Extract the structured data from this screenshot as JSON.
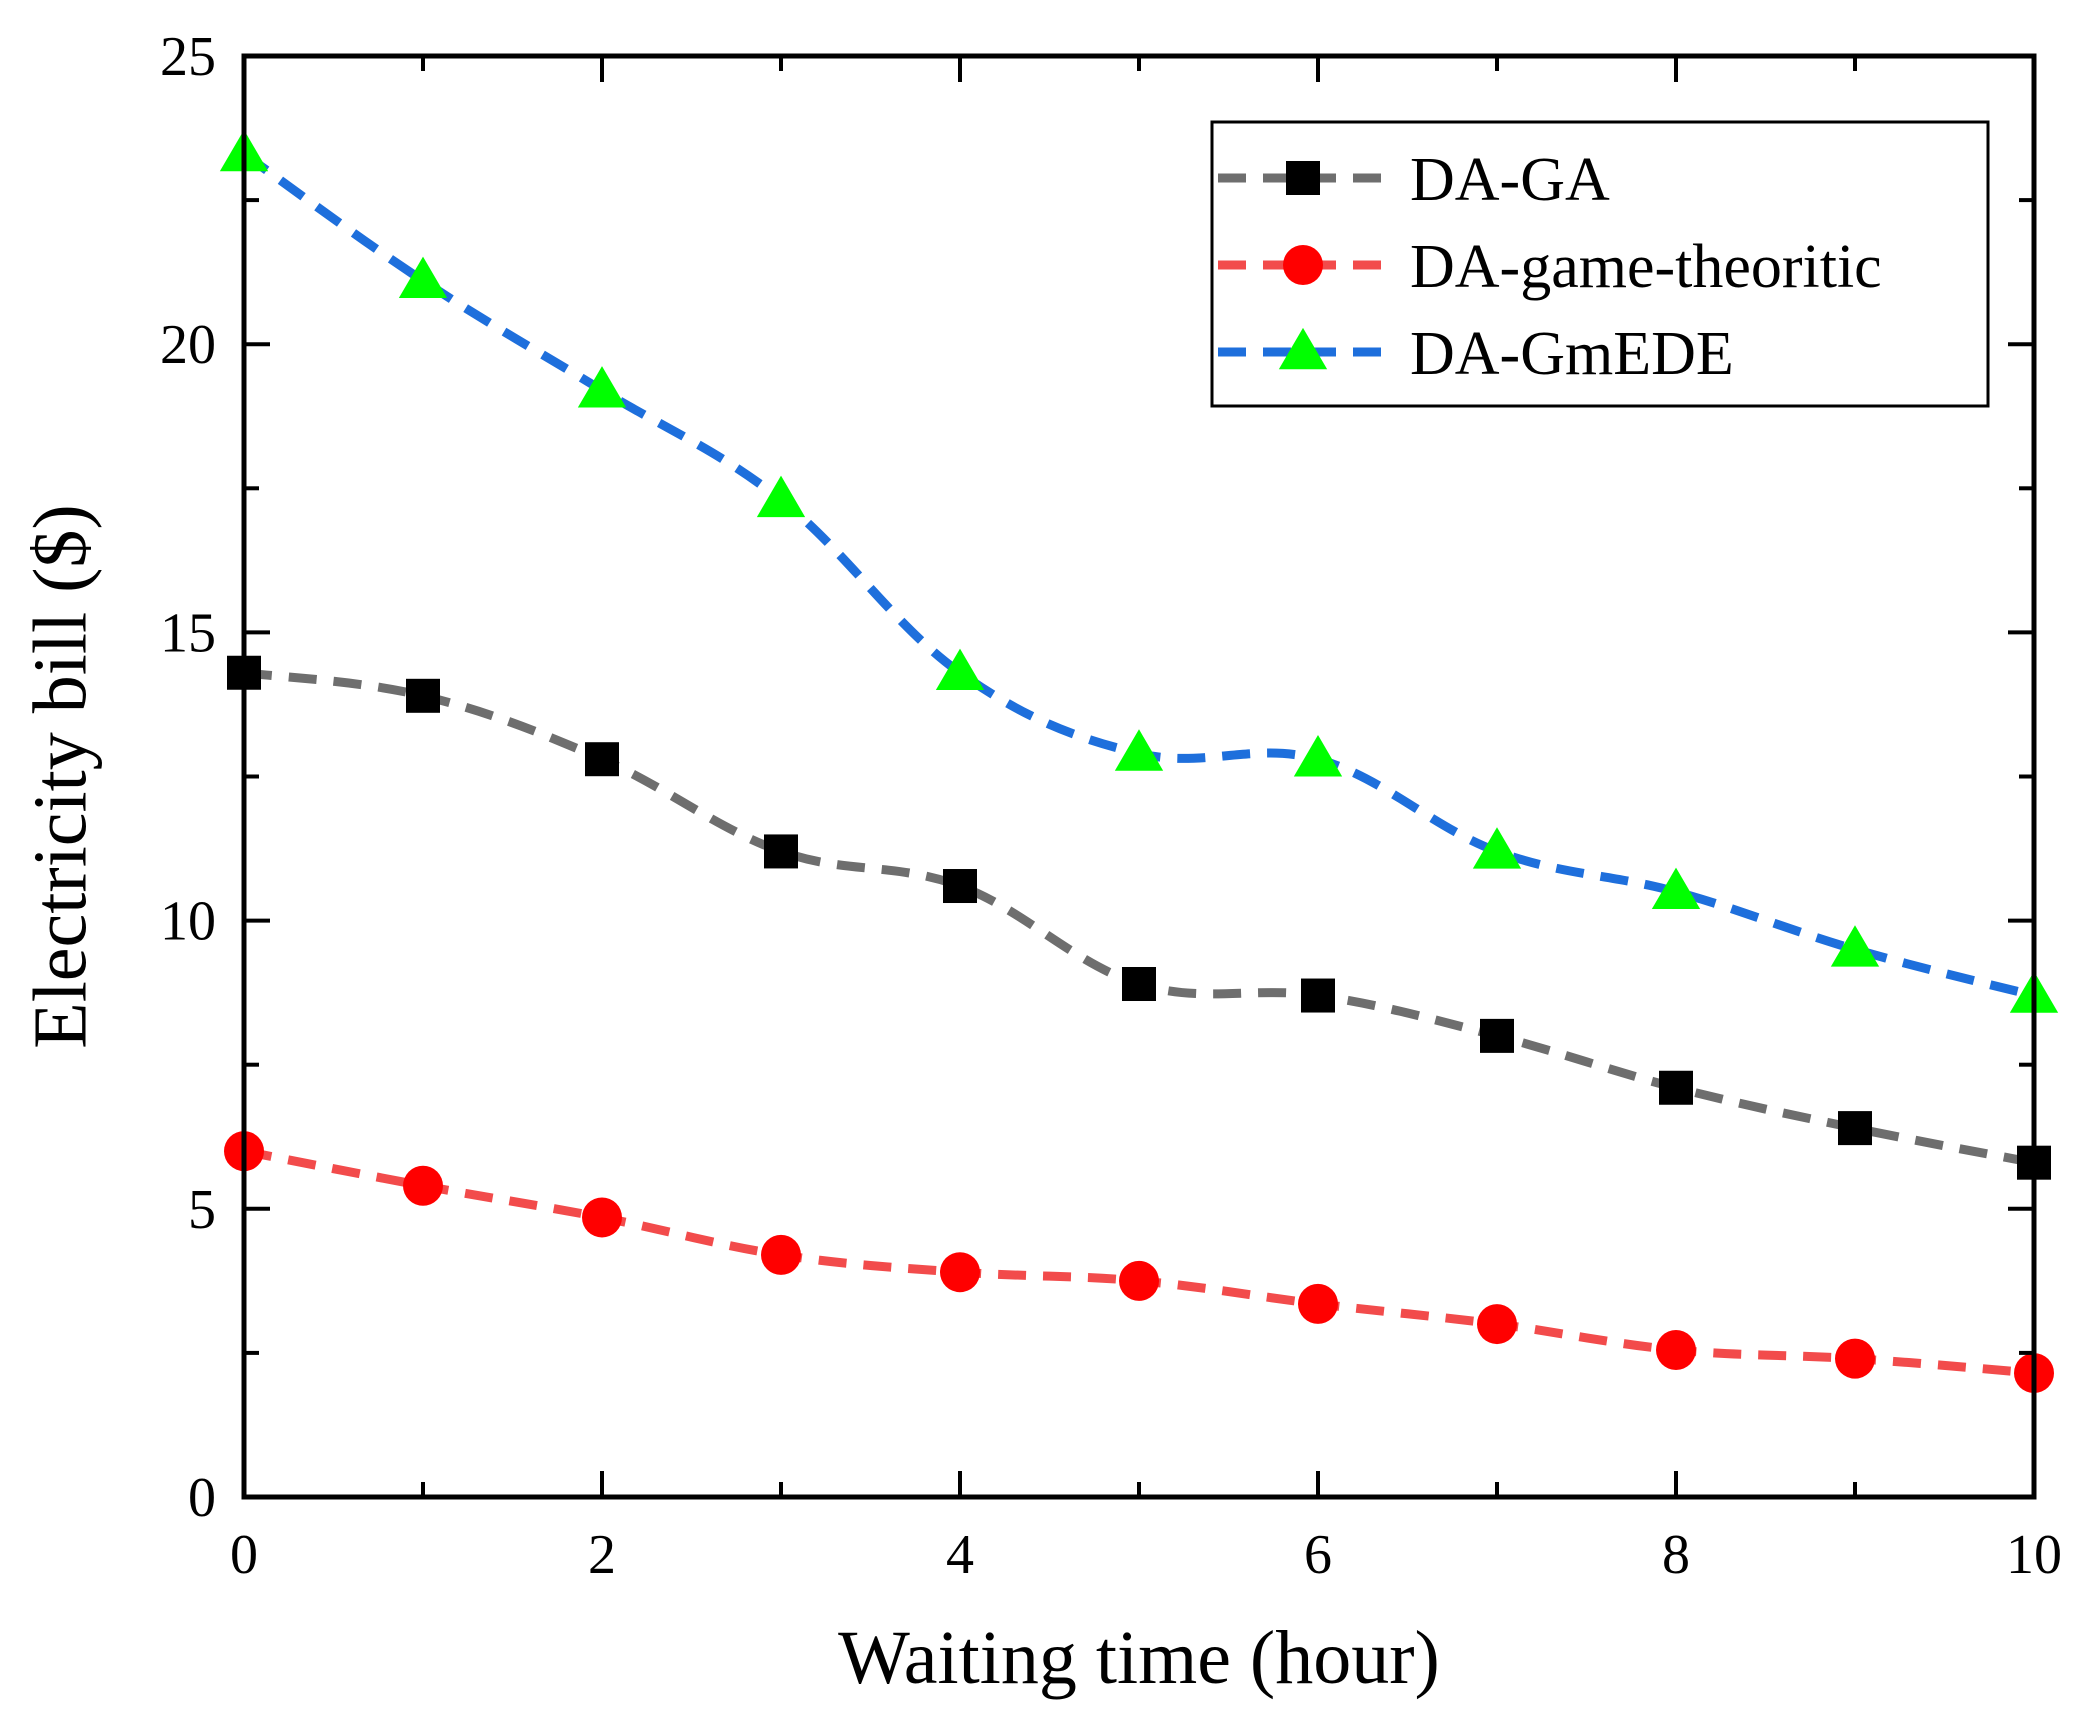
{
  "chart_data": {
    "type": "line",
    "title": "",
    "xlabel": "Waiting time (hour)",
    "ylabel": "Electricity bill ($)",
    "xlim": [
      0,
      10
    ],
    "ylim": [
      0,
      25
    ],
    "x_ticks": [
      0,
      2,
      4,
      6,
      8,
      10
    ],
    "y_ticks": [
      0,
      5,
      10,
      15,
      20,
      25
    ],
    "grid": false,
    "legend_position": "top-right",
    "x": [
      0,
      1,
      2,
      3,
      4,
      5,
      6,
      7,
      8,
      9,
      10
    ],
    "series": [
      {
        "name": "DA-GA",
        "color": "#6e6e6e",
        "marker": "square",
        "marker_color": "#000000",
        "values": [
          14.3,
          13.9,
          12.8,
          11.2,
          10.6,
          8.9,
          8.7,
          8.0,
          7.1,
          6.4,
          5.8
        ]
      },
      {
        "name": "DA-game-theoritic",
        "color": "#f24b4b",
        "marker": "circle",
        "marker_color": "#ff0000",
        "values": [
          6.0,
          5.4,
          4.85,
          4.2,
          3.9,
          3.75,
          3.35,
          3.0,
          2.55,
          2.4,
          2.15
        ]
      },
      {
        "name": "DA-GmEDE",
        "color": "#1e6fdc",
        "marker": "triangle",
        "marker_color": "#00ff00",
        "values": [
          23.3,
          21.1,
          19.2,
          17.3,
          14.3,
          12.9,
          12.8,
          11.2,
          10.5,
          9.5,
          8.7
        ]
      }
    ]
  }
}
